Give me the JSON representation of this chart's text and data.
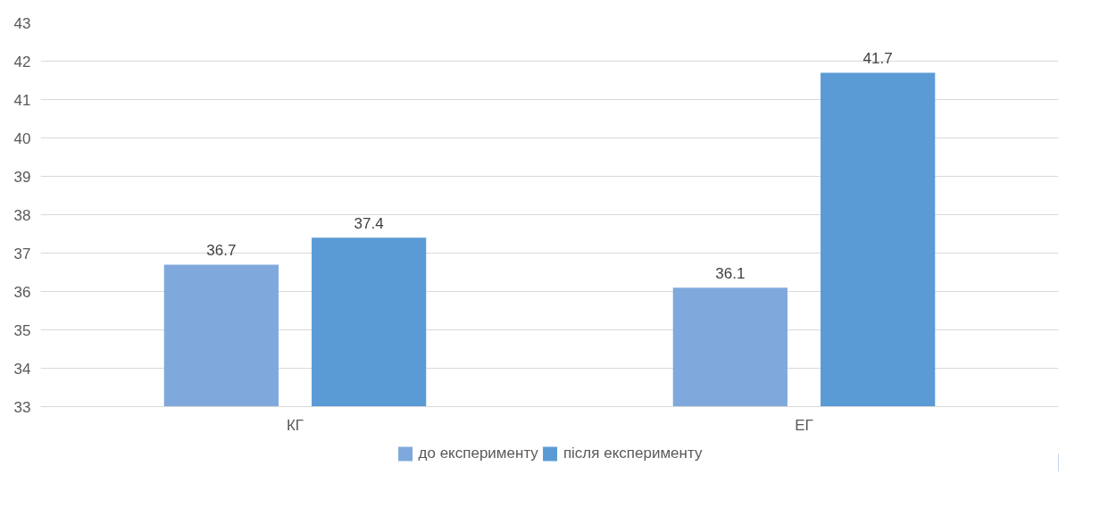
{
  "chart_data": {
    "type": "bar",
    "categories": [
      "КГ",
      "ЕГ"
    ],
    "series": [
      {
        "name": "до експерименту",
        "color": "#7fa9dc",
        "values": [
          36.7,
          36.1
        ]
      },
      {
        "name": "після експерименту",
        "color": "#5b9bd5",
        "values": [
          37.4,
          41.7
        ]
      }
    ],
    "ylim": [
      33,
      43
    ],
    "yticks": [
      33,
      34,
      35,
      36,
      37,
      38,
      39,
      40,
      41,
      42,
      43
    ],
    "grid": "y",
    "legend": "bottom",
    "data_labels": true
  }
}
